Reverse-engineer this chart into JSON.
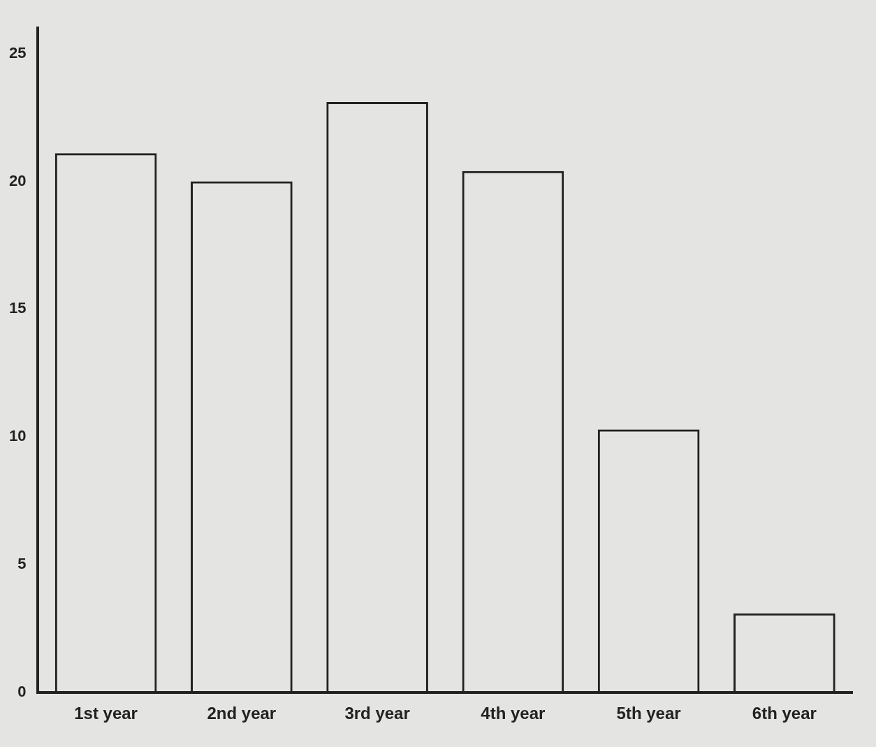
{
  "chart_data": {
    "type": "bar",
    "categories": [
      "1st year",
      "2nd year",
      "3rd year",
      "4th year",
      "5th year",
      "6th year"
    ],
    "values": [
      21.1,
      20,
      23.1,
      20.4,
      10.3,
      3.1
    ],
    "color": "#222222",
    "ylim": [
      0,
      26
    ],
    "yticks": [
      0,
      5,
      10,
      15,
      20,
      25
    ],
    "grid": false,
    "legend": false
  }
}
